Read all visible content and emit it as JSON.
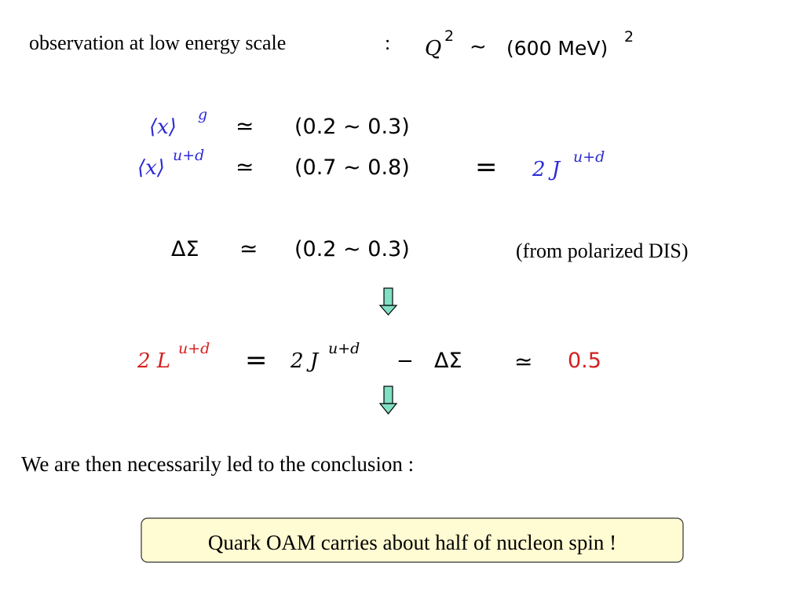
{
  "header": {
    "label": "observation at low energy scale",
    "colon": ":",
    "lhs": "Q",
    "lhs_power": "2",
    "relation": "∼",
    "rhs": "(600 MeV)",
    "rhs_power": "2"
  },
  "equations": [
    {
      "lhs": "⟨x⟩",
      "lhs_power": "g",
      "relation": "≃",
      "rhs": "(0.2 ∼ 0.3)"
    },
    {
      "lhs": "⟨x⟩",
      "lhs_power": "u+d",
      "relation": "≃",
      "rhs": "(0.7 ∼ 0.8)",
      "equals": "=",
      "result": "2 J",
      "result_power": "u+d"
    },
    {
      "lhs": "ΔΣ",
      "relation": "≃",
      "rhs": "(0.2 ∼ 0.3)",
      "note": "(from polarized DIS)"
    },
    {
      "lhs": "2 L",
      "lhs_power": "u+d",
      "equals": "=",
      "term1": "2 J",
      "term1_power": "u+d",
      "minus": "−",
      "term2": "ΔΣ",
      "relation": "≃",
      "result": "0.5"
    }
  ],
  "conclusion": {
    "text": "We are then necessarily led to the conclusion :",
    "highlight": "Quark OAM carries about half of nucleon spin !"
  }
}
